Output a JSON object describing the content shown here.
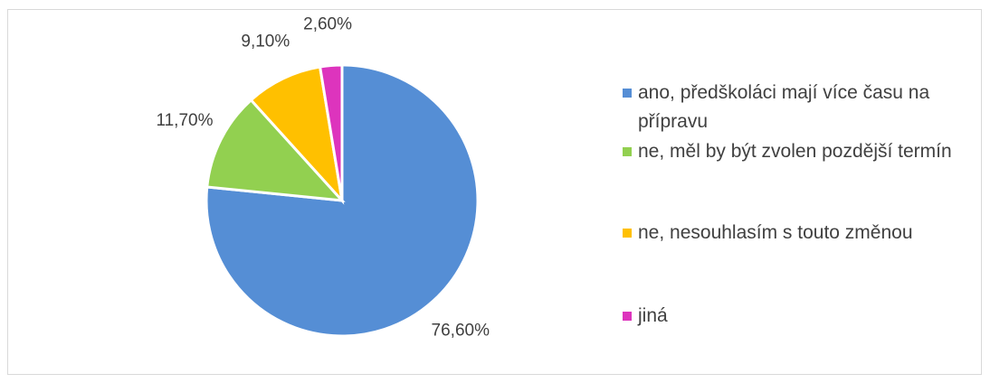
{
  "chart_data": {
    "type": "pie",
    "categories": [
      "ano, předškoláci mají více času na přípravu",
      "ne, měl by být zvolen pozdější termín",
      "ne, nesouhlasím s touto změnou",
      "jiná"
    ],
    "values": [
      76.6,
      11.7,
      9.1,
      2.6
    ],
    "value_labels": [
      "76,60%",
      "11,70%",
      "9,10%",
      "2,60%"
    ],
    "colors": [
      "#558ed5",
      "#92d050",
      "#ffc000",
      "#dd34bd"
    ],
    "legend": "right"
  }
}
